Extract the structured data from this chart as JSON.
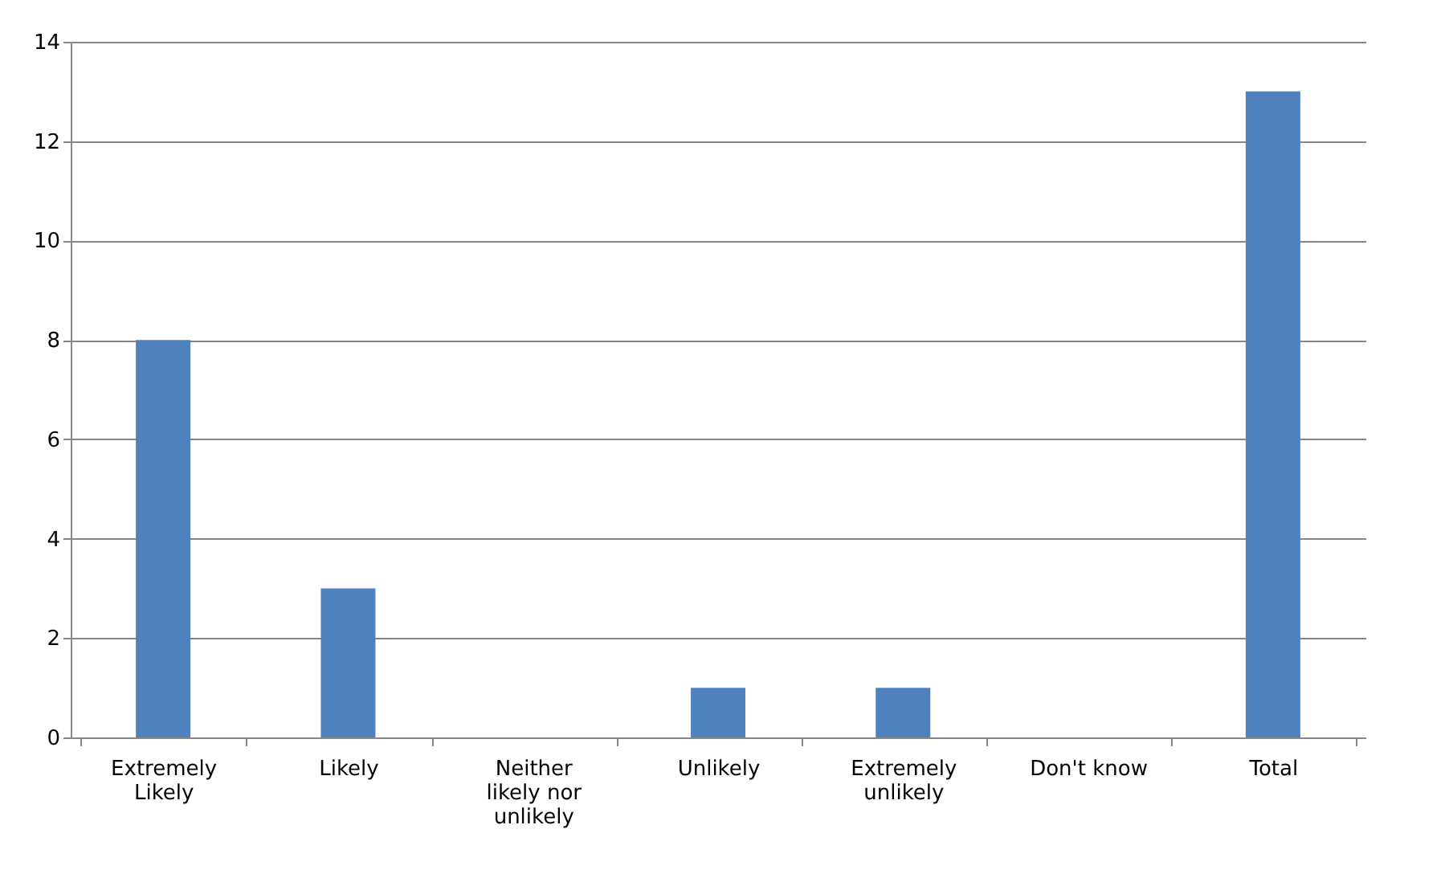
{
  "chart_data": {
    "type": "bar",
    "categories": [
      "Extremely Likely",
      "Likely",
      "Neither likely nor unlikely",
      "Unlikely",
      "Extremely unlikely",
      "Don't know",
      "Total"
    ],
    "values": [
      8,
      3,
      0,
      1,
      1,
      0,
      13
    ],
    "color": "#4f81bd",
    "ylim": [
      0,
      14
    ],
    "yticks": [
      0,
      2,
      4,
      6,
      8,
      10,
      12,
      14
    ],
    "grid": "y"
  }
}
